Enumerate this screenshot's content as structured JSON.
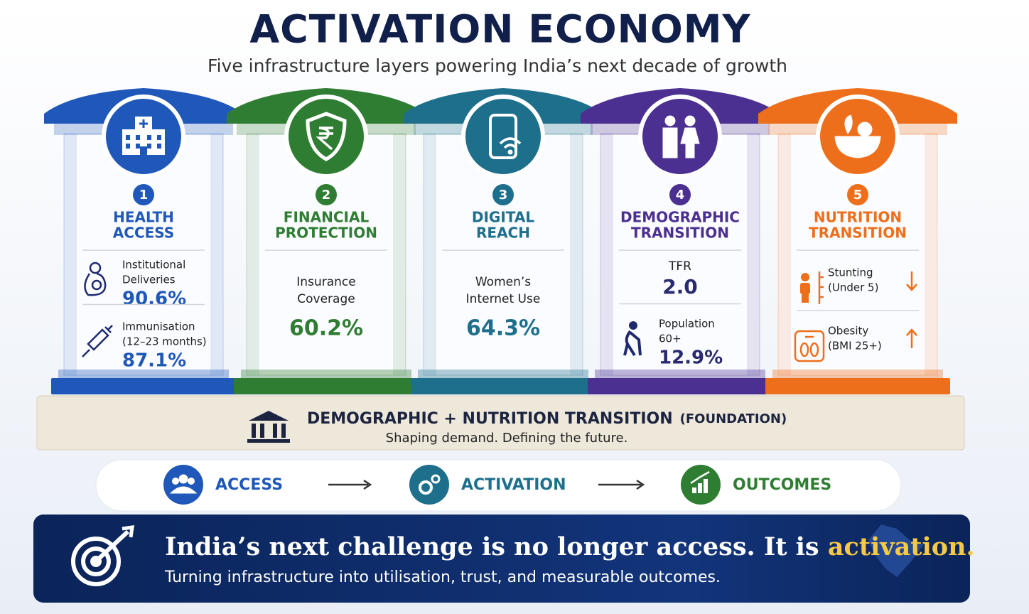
{
  "header": {
    "title": "ACTIVATION ECONOMY",
    "subtitle": "Five infrastructure layers powering India’s next decade of growth"
  },
  "pillars": [
    {
      "number": "1",
      "title_lines": [
        "HEALTH",
        "ACCESS"
      ],
      "color": "#1f58b9",
      "metrics": [
        {
          "label_lines": [
            "Institutional",
            "Deliveries"
          ],
          "value": "90.6%"
        },
        {
          "label_lines": [
            "Immunisation",
            "(12–23 months)"
          ],
          "value": "87.1%"
        }
      ]
    },
    {
      "number": "2",
      "title_lines": [
        "FINANCIAL",
        "PROTECTION"
      ],
      "color": "#2f7d32",
      "metrics": [
        {
          "label_lines": [
            "Insurance",
            "Coverage"
          ],
          "value": "60.2%"
        }
      ]
    },
    {
      "number": "3",
      "title_lines": [
        "DIGITAL",
        "REACH"
      ],
      "color": "#1d6f8c",
      "metrics": [
        {
          "label_lines": [
            "Women’s",
            "Internet Use"
          ],
          "value": "64.3%"
        }
      ]
    },
    {
      "number": "4",
      "title_lines": [
        "DEMOGRAPHIC",
        "TRANSITION"
      ],
      "color": "#4b2f91",
      "metrics": [
        {
          "label_lines": [
            "TFR"
          ],
          "value": "2.0"
        },
        {
          "label_lines": [
            "Population",
            "60+"
          ],
          "value": "12.9%"
        }
      ]
    },
    {
      "number": "5",
      "title_lines": [
        "NUTRITION",
        "TRANSITION"
      ],
      "color": "#ee6f1b",
      "metrics": [
        {
          "label_lines": [
            "Stunting",
            "(Under 5)"
          ],
          "trend": "down"
        },
        {
          "label_lines": [
            "Obesity",
            "(BMI 25+)"
          ],
          "trend": "up"
        }
      ]
    }
  ],
  "foundation": {
    "title": "DEMOGRAPHIC + NUTRITION TRANSITION",
    "tag": "(FOUNDATION)",
    "subtitle": "Shaping demand. Defining the future."
  },
  "flow": [
    "ACCESS",
    "ACTIVATION",
    "OUTCOMES"
  ],
  "banner": {
    "headline": "India’s next challenge is no longer access. It is ",
    "highlight": "activation.",
    "subline": "Turning infrastructure into utilisation, trust, and measurable outcomes."
  }
}
